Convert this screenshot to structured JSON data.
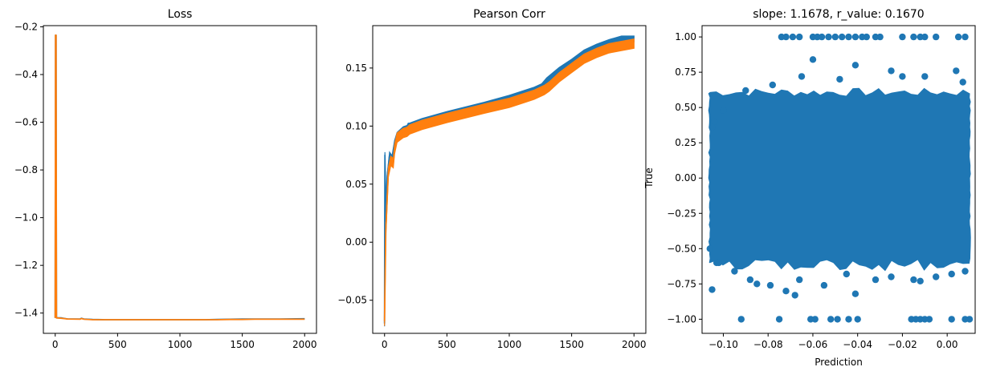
{
  "chart_data": [
    {
      "type": "line",
      "title": "Loss",
      "xlabel": "",
      "ylabel": "",
      "xlim": [
        -95,
        2095
      ],
      "ylim": [
        -1.485,
        -0.195
      ],
      "xticks": [
        "0",
        "500",
        "1000",
        "1500",
        "2000"
      ],
      "yticks": [
        "−0.2",
        "−0.4",
        "−0.6",
        "−0.8",
        "−1.0",
        "−1.2",
        "−1.4"
      ],
      "grid": false,
      "series": [
        {
          "color": "#1f77b4",
          "points": [
            [
              0,
              -1.42
            ],
            [
              2,
              -0.235
            ],
            [
              7,
              -0.235
            ],
            [
              10,
              -1.42
            ],
            [
              50,
              -1.42
            ],
            [
              100,
              -1.425
            ],
            [
              200,
              -1.425
            ],
            [
              210,
              -1.422
            ],
            [
              230,
              -1.425
            ],
            [
              300,
              -1.427
            ],
            [
              400,
              -1.428
            ],
            [
              600,
              -1.428
            ],
            [
              800,
              -1.428
            ],
            [
              1000,
              -1.428
            ],
            [
              1200,
              -1.428
            ],
            [
              1300,
              -1.427
            ],
            [
              1400,
              -1.426
            ],
            [
              1500,
              -1.425
            ],
            [
              1600,
              -1.425
            ],
            [
              1800,
              -1.425
            ],
            [
              2000,
              -1.424
            ]
          ]
        },
        {
          "color": "#ff7f0e",
          "points": [
            [
              0,
              -1.42
            ],
            [
              2,
              -0.235
            ],
            [
              7,
              -0.235
            ],
            [
              10,
              -1.42
            ],
            [
              50,
              -1.422
            ],
            [
              100,
              -1.425
            ],
            [
              200,
              -1.426
            ],
            [
              210,
              -1.423
            ],
            [
              230,
              -1.426
            ],
            [
              300,
              -1.428
            ],
            [
              400,
              -1.428
            ],
            [
              600,
              -1.428
            ],
            [
              800,
              -1.428
            ],
            [
              1000,
              -1.428
            ],
            [
              1200,
              -1.428
            ],
            [
              1300,
              -1.428
            ],
            [
              1400,
              -1.427
            ],
            [
              1500,
              -1.427
            ],
            [
              1600,
              -1.426
            ],
            [
              1800,
              -1.426
            ],
            [
              2000,
              -1.426
            ]
          ]
        }
      ]
    },
    {
      "type": "line",
      "title": "Pearson Corr",
      "xlabel": "",
      "ylabel": "",
      "xlim": [
        -95,
        2095
      ],
      "ylim": [
        -0.0785,
        0.1865
      ],
      "xticks": [
        "0",
        "500",
        "1000",
        "1500",
        "2000"
      ],
      "yticks": [
        "0.15",
        "0.10",
        "0.05",
        "0.00",
        "−0.05"
      ],
      "grid": false,
      "series": [
        {
          "color": "#1f77b4",
          "band": 0.0025,
          "points": [
            [
              0,
              -0.07
            ],
            [
              3,
              0.075
            ],
            [
              10,
              0.02
            ],
            [
              20,
              0.055
            ],
            [
              40,
              0.075
            ],
            [
              60,
              0.072
            ],
            [
              80,
              0.085
            ],
            [
              100,
              0.092
            ],
            [
              150,
              0.097
            ],
            [
              180,
              0.098
            ],
            [
              190,
              0.1
            ],
            [
              200,
              0.1
            ],
            [
              300,
              0.104
            ],
            [
              500,
              0.11
            ],
            [
              800,
              0.118
            ],
            [
              1000,
              0.124
            ],
            [
              1200,
              0.131
            ],
            [
              1260,
              0.134
            ],
            [
              1300,
              0.139
            ],
            [
              1400,
              0.148
            ],
            [
              1500,
              0.155
            ],
            [
              1600,
              0.163
            ],
            [
              1700,
              0.168
            ],
            [
              1800,
              0.172
            ],
            [
              1900,
              0.175
            ],
            [
              2000,
              0.175
            ]
          ]
        },
        {
          "color": "#ff7f0e",
          "band": 0.004,
          "points": [
            [
              0,
              -0.068
            ],
            [
              10,
              0.01
            ],
            [
              30,
              0.06
            ],
            [
              50,
              0.07
            ],
            [
              70,
              0.068
            ],
            [
              80,
              0.08
            ],
            [
              100,
              0.09
            ],
            [
              150,
              0.094
            ],
            [
              180,
              0.095
            ],
            [
              200,
              0.097
            ],
            [
              300,
              0.101
            ],
            [
              500,
              0.107
            ],
            [
              800,
              0.115
            ],
            [
              1000,
              0.12
            ],
            [
              1200,
              0.127
            ],
            [
              1280,
              0.131
            ],
            [
              1320,
              0.134
            ],
            [
              1400,
              0.142
            ],
            [
              1500,
              0.15
            ],
            [
              1600,
              0.158
            ],
            [
              1700,
              0.163
            ],
            [
              1800,
              0.167
            ],
            [
              1900,
              0.169
            ],
            [
              2000,
              0.171
            ]
          ]
        }
      ]
    },
    {
      "type": "scatter",
      "title": "slope: 1.1678, r_value: 0.1670",
      "xlabel": "Prediction",
      "ylabel": "True",
      "xlim": [
        -0.1095,
        0.0125
      ],
      "ylim": [
        -1.1,
        1.08
      ],
      "xticks": [
        "−0.10",
        "−0.08",
        "−0.06",
        "−0.04",
        "−0.02",
        "0.00"
      ],
      "yticks": [
        "1.00",
        "0.75",
        "0.50",
        "0.25",
        "0.00",
        "−0.25",
        "−0.50",
        "−0.75",
        "−1.00"
      ],
      "grid": false,
      "color": "#1f77b4",
      "dense_region": {
        "x": [
          -0.106,
          0.01
        ],
        "y": [
          -0.6,
          0.6
        ]
      },
      "points": [
        [
          -0.074,
          1.0
        ],
        [
          -0.072,
          1.0
        ],
        [
          -0.069,
          1.0
        ],
        [
          -0.066,
          1.0
        ],
        [
          -0.06,
          1.0
        ],
        [
          -0.058,
          1.0
        ],
        [
          -0.056,
          1.0
        ],
        [
          -0.053,
          1.0
        ],
        [
          -0.05,
          1.0
        ],
        [
          -0.047,
          1.0
        ],
        [
          -0.044,
          1.0
        ],
        [
          -0.041,
          1.0
        ],
        [
          -0.038,
          1.0
        ],
        [
          -0.036,
          1.0
        ],
        [
          -0.032,
          1.0
        ],
        [
          -0.03,
          1.0
        ],
        [
          -0.02,
          1.0
        ],
        [
          -0.015,
          1.0
        ],
        [
          -0.012,
          1.0
        ],
        [
          -0.01,
          1.0
        ],
        [
          -0.005,
          1.0
        ],
        [
          0.005,
          1.0
        ],
        [
          0.008,
          1.0
        ],
        [
          -0.092,
          -1.0
        ],
        [
          -0.075,
          -1.0
        ],
        [
          -0.061,
          -1.0
        ],
        [
          -0.059,
          -1.0
        ],
        [
          -0.052,
          -1.0
        ],
        [
          -0.049,
          -1.0
        ],
        [
          -0.044,
          -1.0
        ],
        [
          -0.04,
          -1.0
        ],
        [
          -0.016,
          -1.0
        ],
        [
          -0.014,
          -1.0
        ],
        [
          -0.012,
          -1.0
        ],
        [
          -0.01,
          -1.0
        ],
        [
          -0.008,
          -1.0
        ],
        [
          0.002,
          -1.0
        ],
        [
          0.008,
          -1.0
        ],
        [
          0.01,
          -1.0
        ],
        [
          -0.06,
          0.84
        ],
        [
          -0.041,
          0.8
        ],
        [
          -0.065,
          0.72
        ],
        [
          -0.048,
          0.7
        ],
        [
          -0.025,
          0.76
        ],
        [
          -0.02,
          0.72
        ],
        [
          -0.01,
          0.72
        ],
        [
          0.004,
          0.76
        ],
        [
          0.007,
          0.68
        ],
        [
          -0.078,
          0.66
        ],
        [
          -0.09,
          0.62
        ],
        [
          -0.1,
          0.48
        ],
        [
          -0.104,
          0.4
        ],
        [
          -0.105,
          0.36
        ],
        [
          -0.106,
          -0.5
        ],
        [
          -0.103,
          -0.6
        ],
        [
          -0.102,
          -0.6
        ],
        [
          -0.105,
          -0.79
        ],
        [
          -0.095,
          -0.66
        ],
        [
          -0.088,
          -0.72
        ],
        [
          -0.085,
          -0.75
        ],
        [
          -0.079,
          -0.76
        ],
        [
          -0.072,
          -0.8
        ],
        [
          -0.068,
          -0.83
        ],
        [
          -0.066,
          -0.72
        ],
        [
          -0.055,
          -0.76
        ],
        [
          -0.045,
          -0.68
        ],
        [
          -0.041,
          -0.82
        ],
        [
          -0.032,
          -0.72
        ],
        [
          -0.025,
          -0.7
        ],
        [
          -0.015,
          -0.72
        ],
        [
          -0.012,
          -0.73
        ],
        [
          -0.005,
          -0.7
        ],
        [
          0.002,
          -0.68
        ],
        [
          0.008,
          -0.66
        ]
      ]
    }
  ]
}
